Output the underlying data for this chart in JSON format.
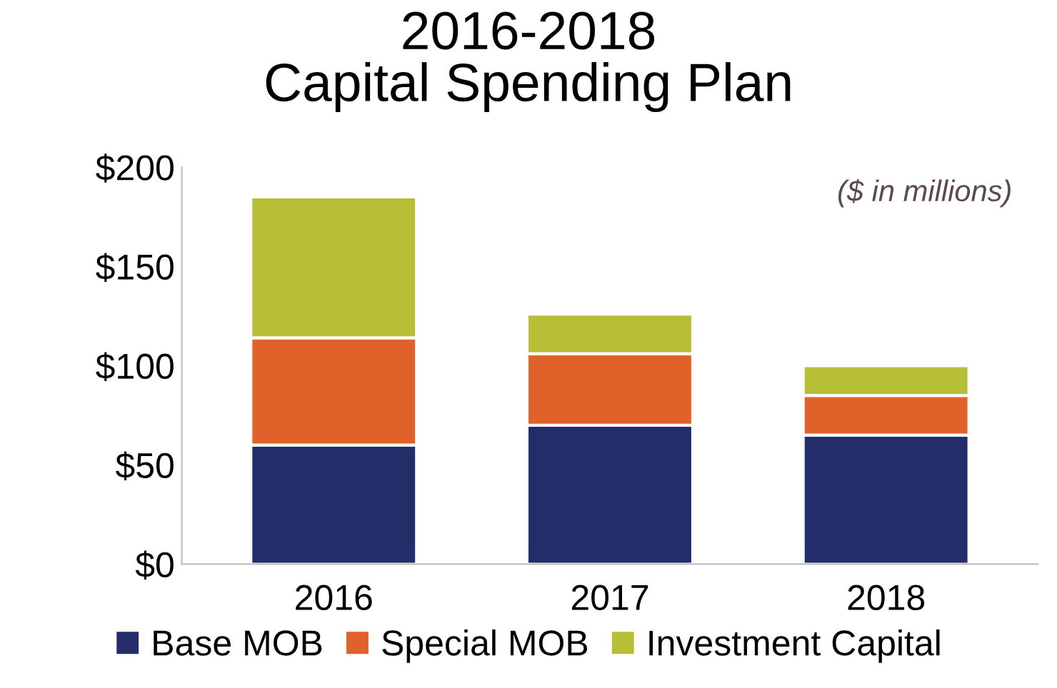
{
  "chart_data": {
    "type": "bar",
    "title": "2016-2018\nCapital Spending Plan",
    "annotations": [
      "($ in millions)"
    ],
    "categories": [
      "2016",
      "2017",
      "2018"
    ],
    "stacked": true,
    "series": [
      {
        "name": "Base MOB",
        "color": "#232d69",
        "values": [
          60,
          70,
          65
        ]
      },
      {
        "name": "Special MOB",
        "color": "#e0622a",
        "values": [
          54,
          36,
          20
        ]
      },
      {
        "name": "Investment Capital",
        "color": "#b6bf35",
        "values": [
          71,
          20,
          15
        ]
      }
    ],
    "ylim": [
      0,
      200
    ],
    "yticks": [
      {
        "value": 0,
        "label": "$0"
      },
      {
        "value": 50,
        "label": "$50"
      },
      {
        "value": 100,
        "label": "$100"
      },
      {
        "value": 150,
        "label": "$150"
      },
      {
        "value": 200,
        "label": "$200"
      }
    ],
    "grid": false,
    "legend": "bottom"
  }
}
